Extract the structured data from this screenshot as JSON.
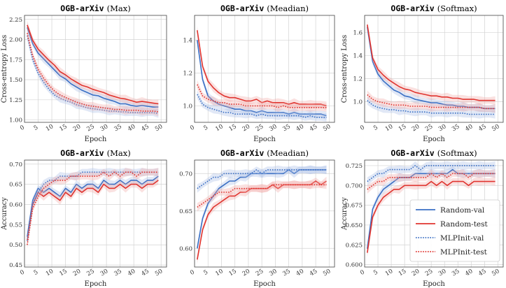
{
  "chart_data": [
    {
      "type": "line",
      "dataset": "OGB-arXiv",
      "variant": "(Max)",
      "xlabel": "Epoch",
      "ylabel": "Cross-entropy Loss",
      "xlim": [
        0,
        52
      ],
      "ylim": [
        0.97,
        2.3
      ],
      "xticks": [
        0,
        5,
        10,
        15,
        20,
        25,
        30,
        35,
        40,
        45,
        50
      ],
      "yticks": [
        1.0,
        1.25,
        1.5,
        1.75,
        2.0,
        2.25
      ],
      "ytick_labels": [
        "1.00",
        "1.25",
        "1.50",
        "1.75",
        "2.00",
        "2.25"
      ],
      "start": 1,
      "step": 2,
      "series": [
        {
          "name": "Random-val",
          "key": "rv",
          "values": [
            2.15,
            1.95,
            1.83,
            1.76,
            1.69,
            1.62,
            1.55,
            1.51,
            1.45,
            1.41,
            1.37,
            1.34,
            1.31,
            1.3,
            1.27,
            1.25,
            1.23,
            1.2,
            1.2,
            1.18,
            1.17,
            1.18,
            1.17,
            1.16,
            1.16
          ]
        },
        {
          "name": "Random-test",
          "key": "rt",
          "values": [
            2.18,
            1.99,
            1.88,
            1.81,
            1.74,
            1.68,
            1.6,
            1.56,
            1.51,
            1.47,
            1.43,
            1.41,
            1.38,
            1.36,
            1.34,
            1.31,
            1.29,
            1.27,
            1.26,
            1.24,
            1.22,
            1.23,
            1.22,
            1.21,
            1.2
          ]
        },
        {
          "name": "MLPInit-val",
          "key": "mv",
          "values": [
            2.05,
            1.75,
            1.58,
            1.47,
            1.38,
            1.31,
            1.27,
            1.24,
            1.22,
            1.19,
            1.17,
            1.15,
            1.14,
            1.13,
            1.12,
            1.11,
            1.11,
            1.1,
            1.1,
            1.09,
            1.09,
            1.09,
            1.09,
            1.09,
            1.08
          ]
        },
        {
          "name": "MLPInit-test",
          "key": "mt",
          "values": [
            2.08,
            1.8,
            1.63,
            1.52,
            1.43,
            1.36,
            1.31,
            1.28,
            1.25,
            1.22,
            1.2,
            1.18,
            1.17,
            1.16,
            1.15,
            1.14,
            1.13,
            1.13,
            1.12,
            1.12,
            1.12,
            1.11,
            1.11,
            1.11,
            1.1
          ]
        }
      ]
    },
    {
      "type": "line",
      "dataset": "OGB-arXiv",
      "variant": "(Meadian)",
      "xlabel": "Epoch",
      "ylabel": "",
      "xlim": [
        0,
        52
      ],
      "ylim": [
        0.9,
        1.55
      ],
      "xticks": [
        0,
        5,
        10,
        15,
        20,
        25,
        30,
        35,
        40,
        45,
        50
      ],
      "yticks": [
        1.0,
        1.2,
        1.4
      ],
      "ytick_labels": [
        "1.0",
        "1.2",
        "1.4"
      ],
      "start": 1,
      "step": 2,
      "series": [
        {
          "name": "Random-val",
          "key": "rv",
          "values": [
            1.4,
            1.16,
            1.06,
            1.03,
            1.01,
            1.0,
            0.99,
            0.98,
            0.98,
            0.97,
            0.97,
            0.96,
            0.97,
            0.96,
            0.96,
            0.96,
            0.96,
            0.95,
            0.96,
            0.95,
            0.95,
            0.95,
            0.95,
            0.95,
            0.94
          ]
        },
        {
          "name": "Random-test",
          "key": "rt",
          "values": [
            1.46,
            1.24,
            1.15,
            1.11,
            1.08,
            1.06,
            1.05,
            1.05,
            1.04,
            1.03,
            1.03,
            1.04,
            1.02,
            1.03,
            1.02,
            1.02,
            1.02,
            1.01,
            1.02,
            1.01,
            1.01,
            1.01,
            1.01,
            1.01,
            1.0
          ]
        },
        {
          "name": "MLPInit-val",
          "key": "mv",
          "values": [
            1.07,
            1.01,
            0.99,
            0.98,
            0.97,
            0.96,
            0.96,
            0.95,
            0.95,
            0.95,
            0.95,
            0.94,
            0.95,
            0.94,
            0.94,
            0.94,
            0.94,
            0.94,
            0.94,
            0.94,
            0.93,
            0.94,
            0.93,
            0.93,
            0.93
          ]
        },
        {
          "name": "MLPInit-test",
          "key": "mt",
          "values": [
            1.13,
            1.06,
            1.04,
            1.03,
            1.02,
            1.02,
            1.01,
            1.01,
            1.01,
            1.0,
            1.0,
            1.0,
            1.0,
            1.0,
            1.0,
            0.99,
            1.0,
            0.99,
            0.99,
            0.99,
            0.99,
            0.99,
            0.99,
            0.99,
            0.99
          ]
        }
      ]
    },
    {
      "type": "line",
      "dataset": "OGB-arXiv",
      "variant": "(Softmax)",
      "xlabel": "Epoch",
      "ylabel": "Cross-entropy Loss",
      "xlim": [
        0,
        52
      ],
      "ylim": [
        0.82,
        1.75
      ],
      "xticks": [
        0,
        5,
        10,
        15,
        20,
        25,
        30,
        35,
        40,
        45,
        50
      ],
      "yticks": [
        1.0,
        1.2,
        1.4,
        1.6
      ],
      "ytick_labels": [
        "1.0",
        "1.2",
        "1.4",
        "1.6"
      ],
      "start": 1,
      "step": 2,
      "series": [
        {
          "name": "Random-val",
          "key": "rv",
          "values": [
            1.65,
            1.35,
            1.24,
            1.18,
            1.14,
            1.1,
            1.08,
            1.05,
            1.04,
            1.02,
            1.01,
            1.0,
            0.99,
            0.99,
            0.98,
            0.97,
            0.97,
            0.96,
            0.96,
            0.95,
            0.95,
            0.95,
            0.94,
            0.94,
            0.94
          ]
        },
        {
          "name": "Random-test",
          "key": "rt",
          "values": [
            1.67,
            1.38,
            1.28,
            1.23,
            1.19,
            1.16,
            1.13,
            1.11,
            1.1,
            1.08,
            1.07,
            1.06,
            1.05,
            1.05,
            1.04,
            1.04,
            1.03,
            1.03,
            1.02,
            1.02,
            1.02,
            1.01,
            1.01,
            1.01,
            1.01
          ]
        },
        {
          "name": "MLPInit-val",
          "key": "mv",
          "values": [
            1.01,
            0.97,
            0.95,
            0.94,
            0.93,
            0.93,
            0.92,
            0.92,
            0.91,
            0.91,
            0.91,
            0.91,
            0.9,
            0.9,
            0.9,
            0.9,
            0.9,
            0.9,
            0.9,
            0.89,
            0.89,
            0.89,
            0.89,
            0.89,
            0.89
          ]
        },
        {
          "name": "MLPInit-test",
          "key": "mt",
          "values": [
            1.06,
            1.02,
            1.0,
            0.99,
            0.98,
            0.97,
            0.97,
            0.97,
            0.96,
            0.96,
            0.96,
            0.96,
            0.95,
            0.95,
            0.95,
            0.95,
            0.95,
            0.95,
            0.95,
            0.95,
            0.95,
            0.95,
            0.94,
            0.94,
            0.94
          ]
        }
      ]
    },
    {
      "type": "line",
      "dataset": "OGB-arXiv",
      "variant": "(Max)",
      "xlabel": "Epoch",
      "ylabel": "Accuracy",
      "xlim": [
        0,
        52
      ],
      "ylim": [
        0.445,
        0.71
      ],
      "xticks": [
        0,
        5,
        10,
        15,
        20,
        25,
        30,
        35,
        40,
        45,
        50
      ],
      "yticks": [
        0.45,
        0.5,
        0.55,
        0.6,
        0.65,
        0.7
      ],
      "ytick_labels": [
        "0.45",
        "0.50",
        "0.55",
        "0.60",
        "0.65",
        "0.70"
      ],
      "start": 1,
      "step": 2,
      "series": [
        {
          "name": "Random-val",
          "key": "rv",
          "values": [
            0.52,
            0.61,
            0.64,
            0.63,
            0.64,
            0.63,
            0.62,
            0.64,
            0.63,
            0.65,
            0.64,
            0.65,
            0.65,
            0.64,
            0.66,
            0.65,
            0.65,
            0.66,
            0.65,
            0.66,
            0.66,
            0.65,
            0.66,
            0.66,
            0.67
          ]
        },
        {
          "name": "Random-test",
          "key": "rt",
          "values": [
            0.51,
            0.6,
            0.63,
            0.62,
            0.63,
            0.62,
            0.61,
            0.63,
            0.62,
            0.64,
            0.63,
            0.64,
            0.64,
            0.63,
            0.65,
            0.64,
            0.64,
            0.65,
            0.64,
            0.65,
            0.65,
            0.64,
            0.65,
            0.65,
            0.66
          ]
        },
        {
          "name": "MLPInit-val",
          "key": "mv",
          "values": [
            0.51,
            0.6,
            0.63,
            0.65,
            0.66,
            0.66,
            0.67,
            0.67,
            0.67,
            0.67,
            0.68,
            0.68,
            0.68,
            0.68,
            0.68,
            0.68,
            0.68,
            0.68,
            0.68,
            0.68,
            0.68,
            0.68,
            0.68,
            0.68,
            0.68
          ]
        },
        {
          "name": "MLPInit-test",
          "key": "mt",
          "values": [
            0.5,
            0.59,
            0.62,
            0.64,
            0.65,
            0.66,
            0.66,
            0.66,
            0.67,
            0.67,
            0.67,
            0.67,
            0.67,
            0.67,
            0.68,
            0.67,
            0.68,
            0.67,
            0.68,
            0.68,
            0.67,
            0.68,
            0.68,
            0.68,
            0.68
          ]
        }
      ]
    },
    {
      "type": "line",
      "dataset": "OGB-arXiv",
      "variant": "(Meadian)",
      "xlabel": "Epoch",
      "ylabel": "",
      "xlim": [
        0,
        52
      ],
      "ylim": [
        0.575,
        0.718
      ],
      "xticks": [
        0,
        5,
        10,
        15,
        20,
        25,
        30,
        35,
        40,
        45,
        50
      ],
      "yticks": [
        0.6,
        0.65,
        0.7
      ],
      "ytick_labels": [
        "0.60",
        "0.65",
        "0.70"
      ],
      "start": 1,
      "step": 2,
      "series": [
        {
          "name": "Random-val",
          "key": "rv",
          "values": [
            0.6,
            0.64,
            0.66,
            0.67,
            0.68,
            0.685,
            0.69,
            0.69,
            0.695,
            0.695,
            0.7,
            0.7,
            0.7,
            0.7,
            0.7,
            0.7,
            0.7,
            0.705,
            0.7,
            0.705,
            0.705,
            0.705,
            0.705,
            0.705,
            0.705
          ]
        },
        {
          "name": "Random-test",
          "key": "rt",
          "values": [
            0.585,
            0.625,
            0.645,
            0.655,
            0.66,
            0.665,
            0.67,
            0.67,
            0.675,
            0.675,
            0.68,
            0.68,
            0.68,
            0.68,
            0.685,
            0.68,
            0.685,
            0.685,
            0.685,
            0.685,
            0.685,
            0.685,
            0.69,
            0.685,
            0.69
          ]
        },
        {
          "name": "MLPInit-val",
          "key": "mv",
          "values": [
            0.68,
            0.685,
            0.69,
            0.695,
            0.695,
            0.7,
            0.7,
            0.7,
            0.7,
            0.7,
            0.7,
            0.705,
            0.7,
            0.705,
            0.705,
            0.705,
            0.705,
            0.705,
            0.705,
            0.705,
            0.705,
            0.705,
            0.705,
            0.705,
            0.705
          ]
        },
        {
          "name": "MLPInit-test",
          "key": "mt",
          "values": [
            0.655,
            0.66,
            0.665,
            0.67,
            0.675,
            0.675,
            0.675,
            0.68,
            0.68,
            0.68,
            0.68,
            0.68,
            0.68,
            0.68,
            0.685,
            0.685,
            0.685,
            0.685,
            0.685,
            0.685,
            0.685,
            0.685,
            0.685,
            0.685,
            0.685
          ]
        }
      ]
    },
    {
      "type": "line",
      "dataset": "OGB-arXiv",
      "variant": "(Softmax)",
      "xlabel": "Epoch",
      "ylabel": "Accuracy",
      "xlim": [
        0,
        52
      ],
      "ylim": [
        0.597,
        0.732
      ],
      "xticks": [
        0,
        5,
        10,
        15,
        20,
        25,
        30,
        35,
        40,
        45,
        50
      ],
      "yticks": [
        0.6,
        0.625,
        0.65,
        0.675,
        0.7,
        0.725
      ],
      "ytick_labels": [
        "0.600",
        "0.625",
        "0.650",
        "0.675",
        "0.700",
        "0.725"
      ],
      "start": 1,
      "step": 2,
      "series": [
        {
          "name": "Random-val",
          "key": "rv",
          "values": [
            0.62,
            0.67,
            0.685,
            0.695,
            0.7,
            0.705,
            0.71,
            0.71,
            0.71,
            0.715,
            0.715,
            0.715,
            0.715,
            0.715,
            0.715,
            0.715,
            0.72,
            0.715,
            0.715,
            0.715,
            0.715,
            0.715,
            0.715,
            0.715,
            0.715
          ]
        },
        {
          "name": "Random-test",
          "key": "rt",
          "values": [
            0.615,
            0.66,
            0.675,
            0.685,
            0.69,
            0.695,
            0.695,
            0.7,
            0.7,
            0.7,
            0.7,
            0.7,
            0.705,
            0.7,
            0.705,
            0.7,
            0.705,
            0.705,
            0.705,
            0.7,
            0.705,
            0.705,
            0.705,
            0.705,
            0.705
          ]
        },
        {
          "name": "MLPInit-val",
          "key": "mv",
          "values": [
            0.705,
            0.71,
            0.715,
            0.715,
            0.72,
            0.72,
            0.72,
            0.72,
            0.72,
            0.725,
            0.72,
            0.725,
            0.725,
            0.725,
            0.725,
            0.725,
            0.725,
            0.725,
            0.725,
            0.725,
            0.725,
            0.725,
            0.725,
            0.725,
            0.725
          ]
        },
        {
          "name": "MLPInit-test",
          "key": "mt",
          "values": [
            0.695,
            0.7,
            0.705,
            0.705,
            0.71,
            0.71,
            0.71,
            0.71,
            0.71,
            0.71,
            0.71,
            0.71,
            0.715,
            0.71,
            0.715,
            0.71,
            0.715,
            0.715,
            0.715,
            0.71,
            0.715,
            0.715,
            0.715,
            0.715,
            0.715
          ]
        }
      ]
    }
  ],
  "legend": {
    "placement": "lower-right of bottom-right panel",
    "items": [
      {
        "key": "rv",
        "label": "Random-val"
      },
      {
        "key": "rt",
        "label": "Random-test"
      },
      {
        "key": "mv",
        "label": "MLPInit-val"
      },
      {
        "key": "mt",
        "label": "MLPInit-test"
      }
    ]
  },
  "colors": {
    "blue": "#3a6fc4",
    "red": "#e0342f",
    "grid": "#d3d3d3",
    "band_blue": "#a9bde6",
    "band_red": "#f2a9a5"
  }
}
